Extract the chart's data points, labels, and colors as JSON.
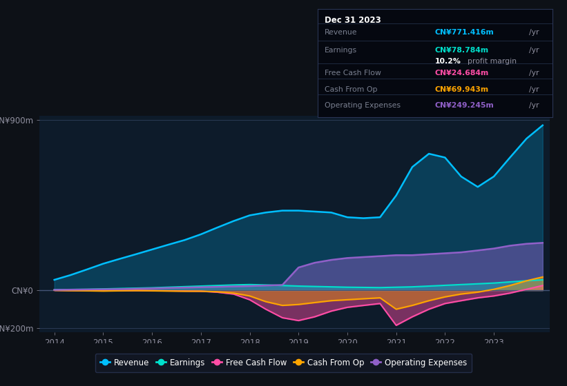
{
  "bg_color": "#0d1117",
  "plot_bg_color": "#0d1b2a",
  "years": [
    2014,
    2014.33,
    2014.67,
    2015,
    2015.33,
    2015.67,
    2016,
    2016.33,
    2016.67,
    2017,
    2017.33,
    2017.67,
    2018,
    2018.33,
    2018.67,
    2019,
    2019.33,
    2019.67,
    2020,
    2020.33,
    2020.67,
    2021,
    2021.33,
    2021.67,
    2022,
    2022.33,
    2022.67,
    2023,
    2023.33,
    2023.67,
    2024
  ],
  "revenue": [
    55,
    80,
    110,
    140,
    165,
    190,
    215,
    240,
    265,
    295,
    330,
    365,
    395,
    410,
    420,
    420,
    415,
    410,
    385,
    380,
    385,
    500,
    650,
    720,
    700,
    600,
    545,
    600,
    700,
    800,
    870
  ],
  "earnings": [
    3,
    4,
    5,
    7,
    9,
    11,
    13,
    16,
    19,
    22,
    25,
    28,
    30,
    28,
    25,
    22,
    20,
    18,
    16,
    15,
    14,
    16,
    18,
    22,
    26,
    30,
    34,
    38,
    44,
    50,
    55
  ],
  "free_cash_flow": [
    0,
    -1,
    -2,
    -3,
    -2,
    -1,
    -2,
    -3,
    -4,
    -5,
    -10,
    -20,
    -50,
    -100,
    -145,
    -160,
    -140,
    -110,
    -90,
    -80,
    -70,
    -185,
    -140,
    -100,
    -70,
    -55,
    -40,
    -30,
    -15,
    5,
    25
  ],
  "cash_from_op": [
    0,
    -2,
    -3,
    -4,
    -3,
    -2,
    -3,
    -4,
    -5,
    -5,
    -8,
    -15,
    -30,
    -60,
    -80,
    -75,
    -65,
    -55,
    -50,
    -45,
    -40,
    -100,
    -80,
    -55,
    -35,
    -20,
    -10,
    5,
    25,
    50,
    70
  ],
  "operating_expenses": [
    2,
    3,
    4,
    5,
    6,
    8,
    10,
    12,
    14,
    16,
    18,
    20,
    22,
    25,
    28,
    120,
    145,
    160,
    170,
    175,
    180,
    185,
    185,
    190,
    195,
    200,
    210,
    220,
    235,
    245,
    250
  ],
  "ylim": [
    -220,
    920
  ],
  "yticks": [
    -200,
    0,
    900
  ],
  "ytick_labels": [
    "-CN¥200m",
    "CN¥0",
    "CN¥900m"
  ],
  "xticks": [
    2014,
    2015,
    2016,
    2017,
    2018,
    2019,
    2020,
    2021,
    2022,
    2023
  ],
  "colors": {
    "revenue": "#00bfff",
    "earnings": "#00e0cc",
    "free_cash_flow": "#ff4da6",
    "cash_from_op": "#ffa500",
    "operating_expenses": "#9060c8"
  },
  "legend": [
    {
      "label": "Revenue",
      "color": "#00bfff"
    },
    {
      "label": "Earnings",
      "color": "#00e0cc"
    },
    {
      "label": "Free Cash Flow",
      "color": "#ff4da6"
    },
    {
      "label": "Cash From Op",
      "color": "#ffa500"
    },
    {
      "label": "Operating Expenses",
      "color": "#9060c8"
    }
  ]
}
